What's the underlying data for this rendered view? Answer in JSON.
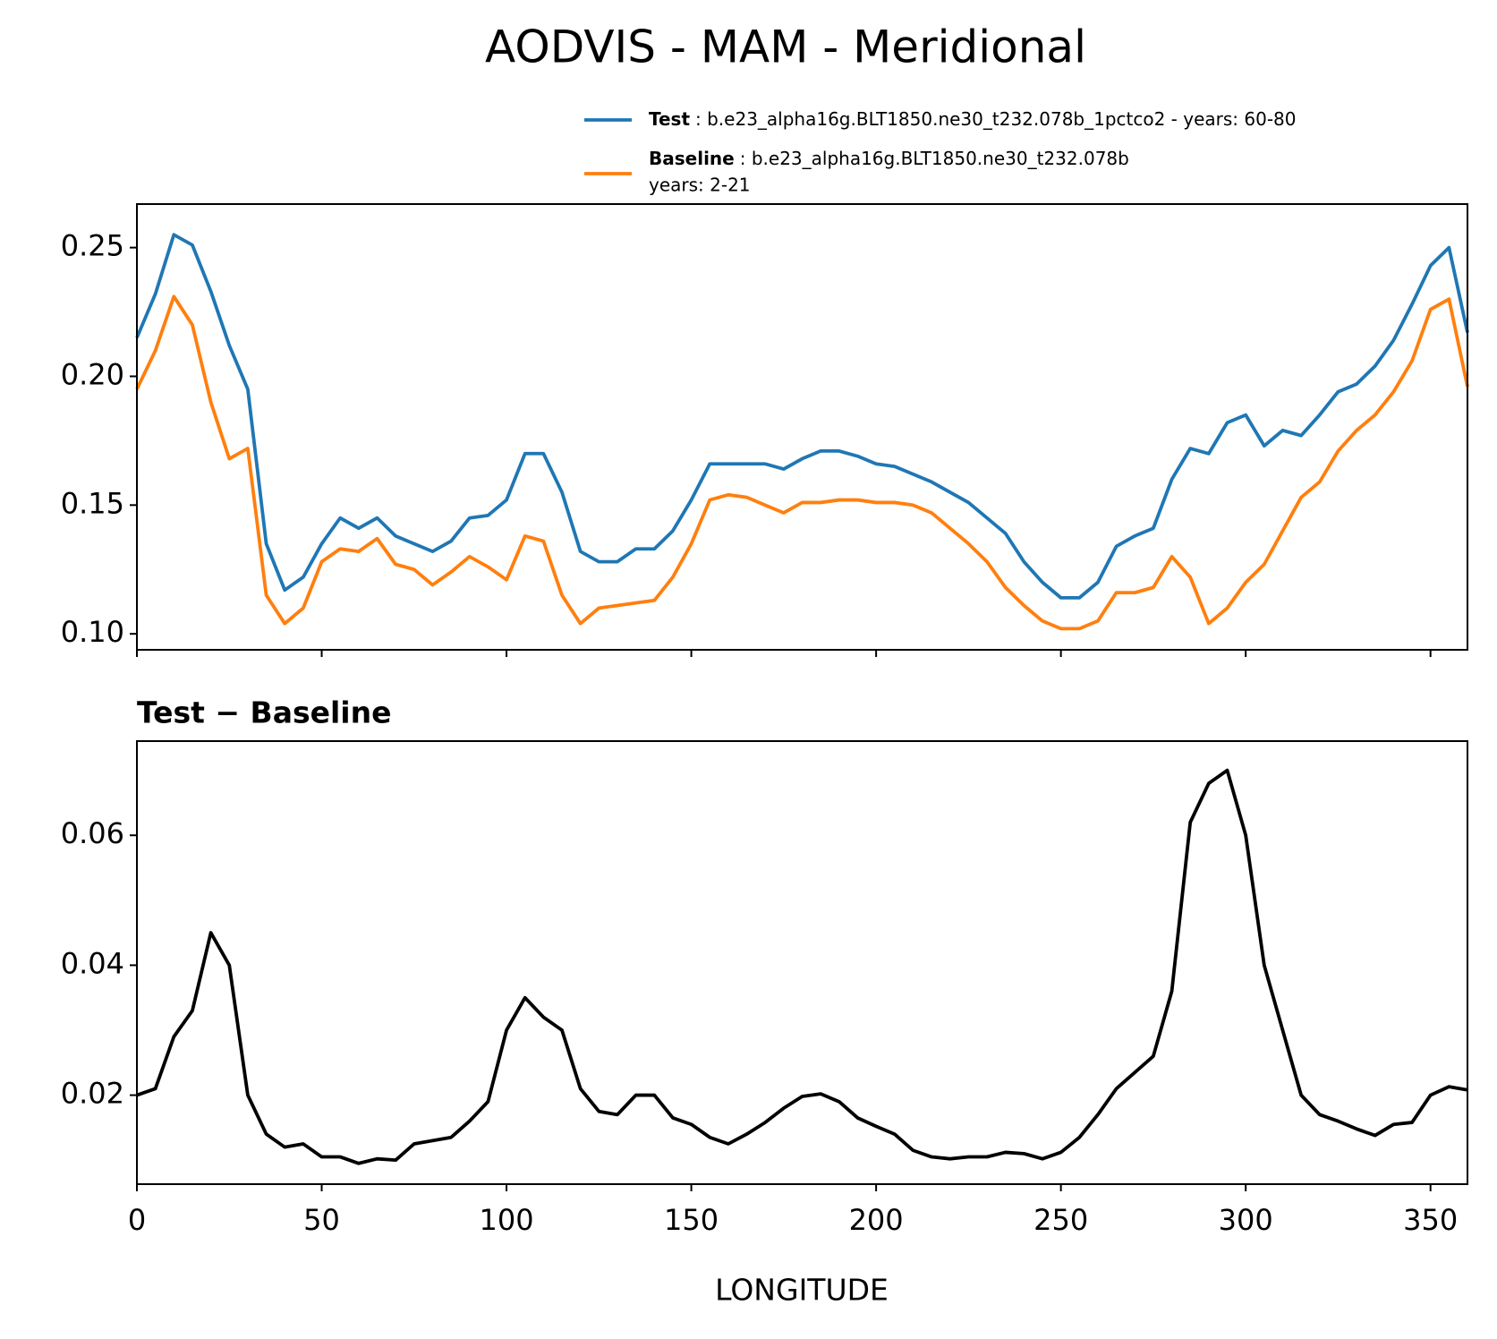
{
  "chart_data": [
    {
      "type": "line",
      "title": "AODVIS - MAM - Meridional",
      "x": [
        0,
        5,
        10,
        15,
        20,
        25,
        30,
        35,
        40,
        45,
        50,
        55,
        60,
        65,
        70,
        75,
        80,
        85,
        90,
        95,
        100,
        105,
        110,
        115,
        120,
        125,
        130,
        135,
        140,
        145,
        150,
        155,
        160,
        165,
        170,
        175,
        180,
        185,
        190,
        195,
        200,
        205,
        210,
        215,
        220,
        225,
        230,
        235,
        240,
        245,
        250,
        255,
        260,
        265,
        270,
        275,
        280,
        285,
        290,
        295,
        300,
        305,
        310,
        315,
        320,
        325,
        330,
        335,
        340,
        345,
        350,
        355,
        360
      ],
      "series": [
        {
          "name": "Test",
          "label": ": b.e23_alpha16g.BLT1850.ne30_t232.078b_1pctco2 - years: 60-80",
          "color": "#1f77b4",
          "values": [
            0.215,
            0.232,
            0.255,
            0.251,
            0.233,
            0.212,
            0.195,
            0.135,
            0.117,
            0.122,
            0.135,
            0.145,
            0.141,
            0.145,
            0.138,
            0.135,
            0.132,
            0.136,
            0.145,
            0.146,
            0.152,
            0.17,
            0.17,
            0.155,
            0.132,
            0.128,
            0.128,
            0.133,
            0.133,
            0.14,
            0.152,
            0.166,
            0.166,
            0.166,
            0.166,
            0.164,
            0.168,
            0.171,
            0.171,
            0.169,
            0.166,
            0.165,
            0.162,
            0.159,
            0.155,
            0.151,
            0.145,
            0.139,
            0.128,
            0.12,
            0.114,
            0.114,
            0.12,
            0.134,
            0.138,
            0.141,
            0.16,
            0.172,
            0.17,
            0.182,
            0.185,
            0.173,
            0.179,
            0.177,
            0.185,
            0.194,
            0.197,
            0.204,
            0.214,
            0.228,
            0.243,
            0.25,
            0.217
          ]
        },
        {
          "name": "Baseline",
          "label": ": b.e23_alpha16g.BLT1850.ne30_t232.078b",
          "label2": "years: 2-21",
          "color": "#ff7f0e",
          "values": [
            0.195,
            0.21,
            0.231,
            0.22,
            0.19,
            0.168,
            0.172,
            0.115,
            0.104,
            0.11,
            0.128,
            0.133,
            0.132,
            0.137,
            0.127,
            0.125,
            0.119,
            0.124,
            0.13,
            0.126,
            0.121,
            0.138,
            0.136,
            0.115,
            0.104,
            0.11,
            0.111,
            0.112,
            0.113,
            0.122,
            0.135,
            0.152,
            0.154,
            0.153,
            0.15,
            0.147,
            0.151,
            0.151,
            0.152,
            0.152,
            0.151,
            0.151,
            0.15,
            0.147,
            0.141,
            0.135,
            0.128,
            0.118,
            0.111,
            0.105,
            0.102,
            0.102,
            0.105,
            0.116,
            0.116,
            0.118,
            0.13,
            0.122,
            0.104,
            0.11,
            0.12,
            0.127,
            0.14,
            0.153,
            0.159,
            0.171,
            0.179,
            0.185,
            0.194,
            0.206,
            0.226,
            0.23,
            0.196
          ]
        }
      ],
      "xlim": [
        0,
        360
      ],
      "ylim": [
        0.0938,
        0.2669
      ],
      "yticks": [
        {
          "value": 0.1,
          "label": "0.10"
        },
        0.15,
        {
          "value": 0.2,
          "label": "0.20"
        },
        0.25
      ]
    },
    {
      "type": "line",
      "title": "Test − Baseline",
      "xlabel": "LONGITUDE",
      "x": [
        0,
        5,
        10,
        15,
        20,
        25,
        30,
        35,
        40,
        45,
        50,
        55,
        60,
        65,
        70,
        75,
        80,
        85,
        90,
        95,
        100,
        105,
        110,
        115,
        120,
        125,
        130,
        135,
        140,
        145,
        150,
        155,
        160,
        165,
        170,
        175,
        180,
        185,
        190,
        195,
        200,
        205,
        210,
        215,
        220,
        225,
        230,
        235,
        240,
        245,
        250,
        255,
        260,
        265,
        270,
        275,
        280,
        285,
        290,
        295,
        300,
        305,
        310,
        315,
        320,
        325,
        330,
        335,
        340,
        345,
        350,
        355,
        360
      ],
      "values": [
        0.02,
        0.021,
        0.029,
        0.033,
        0.045,
        0.04,
        0.02,
        0.014,
        0.012,
        0.0125,
        0.0105,
        0.0105,
        0.0095,
        0.0102,
        0.01,
        0.0125,
        0.013,
        0.0135,
        0.016,
        0.019,
        0.03,
        0.035,
        0.032,
        0.03,
        0.021,
        0.0175,
        0.017,
        0.02,
        0.02,
        0.0165,
        0.0155,
        0.0135,
        0.0125,
        0.014,
        0.0158,
        0.018,
        0.0198,
        0.0202,
        0.019,
        0.0165,
        0.0152,
        0.014,
        0.0115,
        0.0105,
        0.0102,
        0.0105,
        0.0105,
        0.0112,
        0.011,
        0.0102,
        0.0112,
        0.0135,
        0.017,
        0.021,
        0.0235,
        0.026,
        0.036,
        0.062,
        0.068,
        0.07,
        0.06,
        0.04,
        0.03,
        0.02,
        0.017,
        0.016,
        0.0148,
        0.0138,
        0.0155,
        0.0158,
        0.02,
        0.0213,
        0.0208
      ],
      "color": "#000000",
      "xlim": [
        0,
        360
      ],
      "ylim": [
        0.0063,
        0.0745
      ],
      "xticks": [
        0,
        50,
        100,
        150,
        200,
        250,
        300,
        350
      ],
      "yticks": [
        0.02,
        0.04,
        0.06
      ]
    }
  ]
}
